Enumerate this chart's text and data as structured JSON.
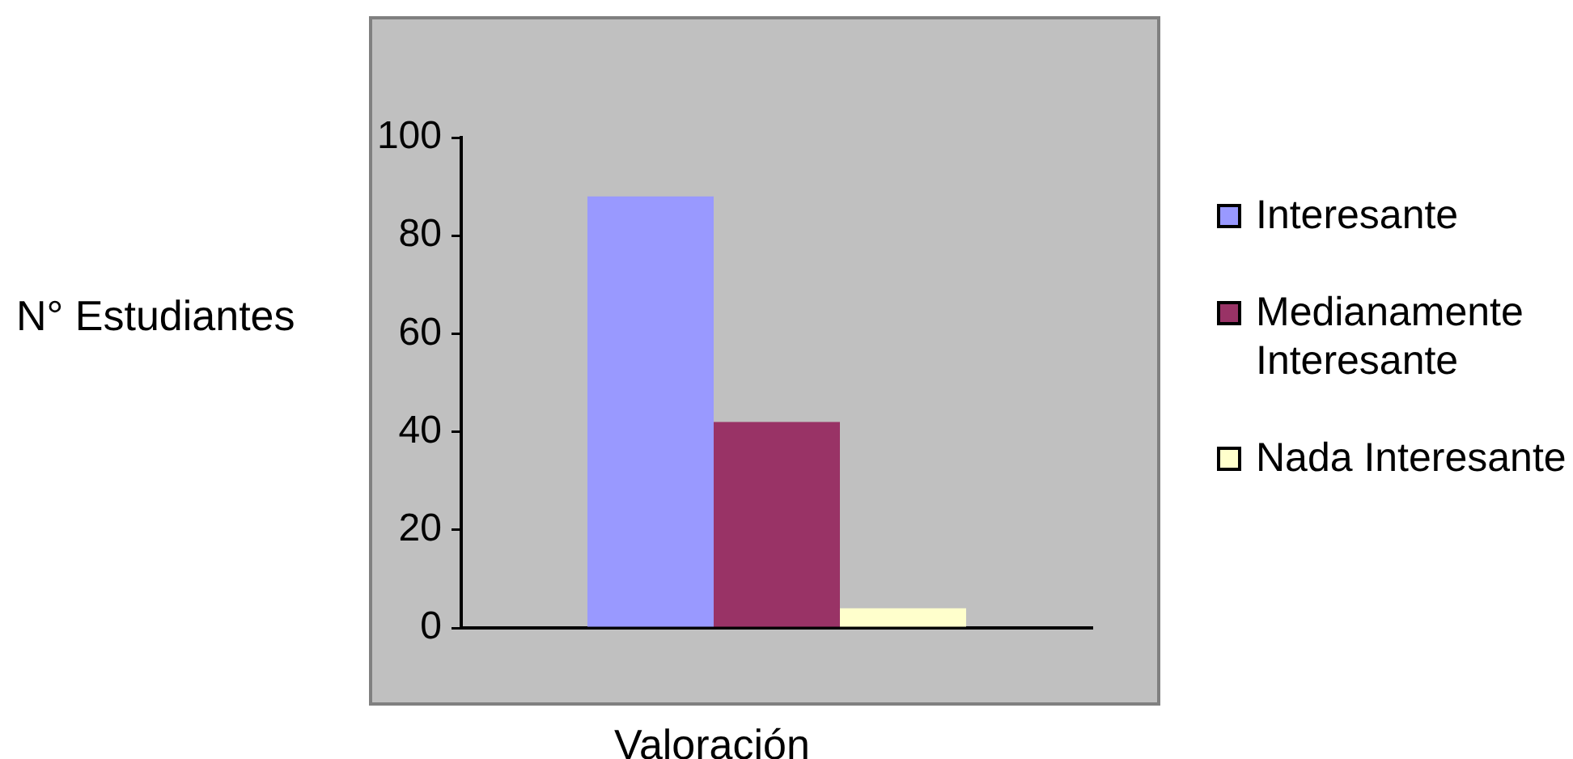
{
  "chart_data": {
    "type": "bar",
    "categories": [
      null
    ],
    "series": [
      {
        "name": "Interesante",
        "color": "#9999ff",
        "values": [
          88
        ]
      },
      {
        "name": "Medianamente Interesante",
        "color": "#993366",
        "values": [
          42
        ]
      },
      {
        "name": "Nada Interesante",
        "color": "#ffffcc",
        "values": [
          4
        ]
      }
    ],
    "xlabel": "Valoración",
    "ylabel": "N° Estudiantes",
    "ylim": [
      0,
      100
    ],
    "yticks": [
      0,
      20,
      40,
      60,
      80,
      100
    ],
    "grid": false,
    "legend": "right"
  }
}
